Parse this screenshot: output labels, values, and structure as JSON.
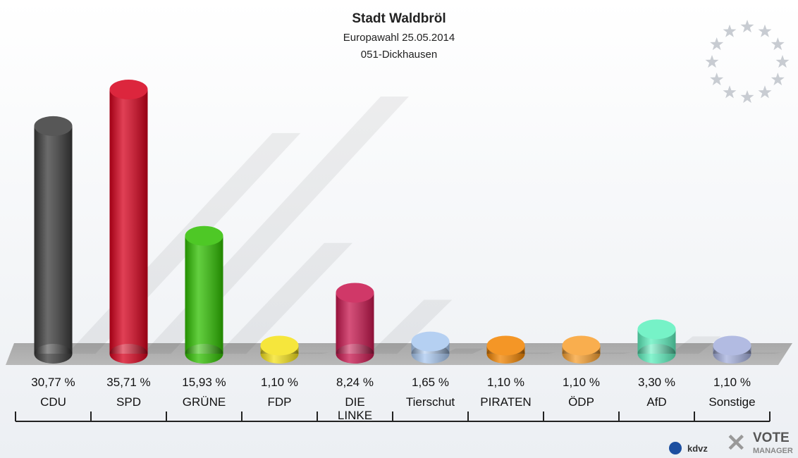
{
  "chart_data": {
    "type": "bar",
    "title": "Stadt Waldbröl",
    "subtitle": "Europawahl 25.05.2014",
    "district": "051-Dickhausen",
    "categories": [
      "CDU",
      "SPD",
      "GRÜNE",
      "FDP",
      "DIE\nLINKE",
      "Tierschut",
      "PIRATEN",
      "ÖDP",
      "AfD",
      "Sonstige"
    ],
    "values": [
      30.77,
      35.71,
      15.93,
      1.1,
      8.24,
      1.65,
      1.1,
      1.1,
      3.3,
      1.1
    ],
    "value_labels": [
      "30,77 %",
      "35,71 %",
      "15,93 %",
      "1,10 %",
      "8,24 %",
      "1,65 %",
      "1,10 %",
      "1,10 %",
      "3,30 %",
      "1,10 %"
    ],
    "colors": [
      "#3a3a3a",
      "#d6001c",
      "#2fbf00",
      "#f5e21a",
      "#c8164e",
      "#a9c8f0",
      "#f28400",
      "#f8a030",
      "#5ef0be",
      "#a5b0dd"
    ],
    "logos": [
      "kdvz",
      "VOTE",
      "MANAGER"
    ]
  }
}
